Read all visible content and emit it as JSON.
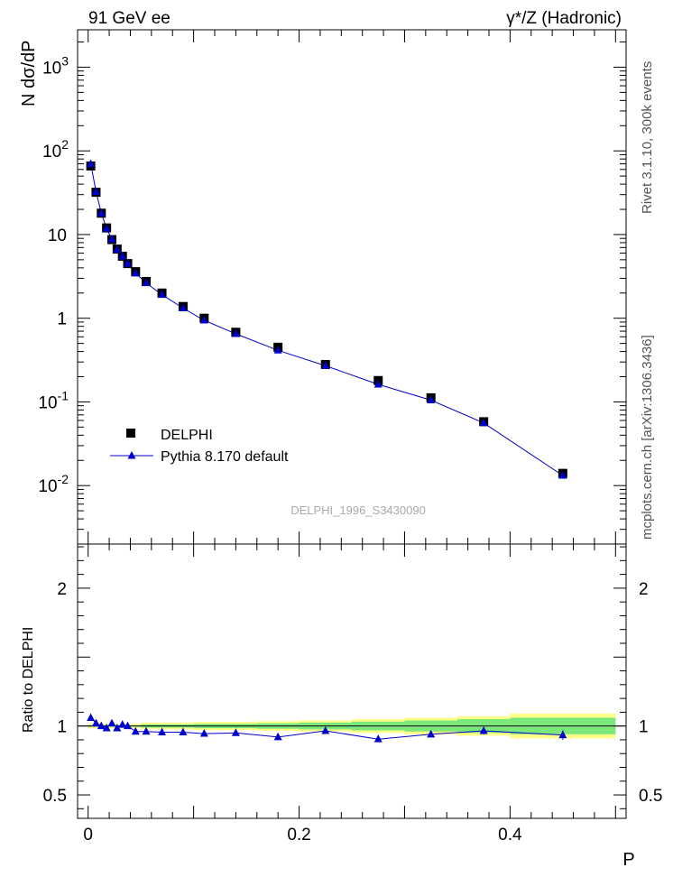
{
  "header": {
    "left": "91 GeV ee",
    "right": "γ*/Z (Hadronic)"
  },
  "side_labels": {
    "rivet": "Rivet 3.1.10,  300k events",
    "mcplots": "mcplots.cern.ch [arXiv:1306.3436]"
  },
  "watermark": "DELPHI_1996_S3430090",
  "chart_data": [
    {
      "type": "scatter",
      "ylabel": "N dσ/dP",
      "yscale": "log",
      "xlim": [
        -0.01,
        0.51
      ],
      "ylim": [
        0.002,
        2800
      ],
      "y_tick_labels": [
        "10^-2",
        "10^-1",
        "1",
        "10",
        "10^2",
        "10^3"
      ],
      "legend": {
        "placement": "lower-left",
        "entries": [
          "DELPHI",
          "Pythia 8.170 default"
        ]
      },
      "series": [
        {
          "name": "DELPHI",
          "marker": "square",
          "color": "#000000",
          "x": [
            0.0025,
            0.0075,
            0.0125,
            0.0175,
            0.0225,
            0.0275,
            0.0325,
            0.0375,
            0.045,
            0.055,
            0.07,
            0.09,
            0.11,
            0.14,
            0.18,
            0.225,
            0.275,
            0.325,
            0.375,
            0.45
          ],
          "y": [
            66,
            32,
            18,
            12,
            8.7,
            6.7,
            5.5,
            4.5,
            3.6,
            2.75,
            2.0,
            1.38,
            1.0,
            0.68,
            0.45,
            0.28,
            0.18,
            0.112,
            0.058,
            0.014
          ]
        },
        {
          "name": "Pythia 8.170 default",
          "marker": "triangle",
          "color": "#0000cc",
          "x": [
            0.0025,
            0.0075,
            0.0125,
            0.0175,
            0.0225,
            0.0275,
            0.0325,
            0.0375,
            0.045,
            0.055,
            0.07,
            0.09,
            0.11,
            0.14,
            0.18,
            0.225,
            0.275,
            0.325,
            0.375,
            0.45
          ],
          "y": [
            70,
            32.5,
            18,
            11.8,
            8.8,
            6.6,
            5.5,
            4.5,
            3.45,
            2.64,
            1.91,
            1.32,
            0.945,
            0.65,
            0.413,
            0.27,
            0.162,
            0.105,
            0.056,
            0.0132
          ]
        }
      ]
    },
    {
      "type": "line",
      "ylabel": "Ratio to DELPHI",
      "xlabel": "P",
      "xlim": [
        -0.01,
        0.51
      ],
      "ylim": [
        0.33,
        2.32
      ],
      "x_tick_labels": [
        "0",
        "0.2",
        "0.4"
      ],
      "y_tick_labels": [
        "0.5",
        "1",
        "2"
      ],
      "bands": [
        {
          "name": "total uncertainty",
          "color": "#ffff88",
          "x_edges": [
            0,
            0.05,
            0.1,
            0.16,
            0.2,
            0.25,
            0.3,
            0.35,
            0.4,
            0.5
          ],
          "half_width": [
            0.015,
            0.025,
            0.03,
            0.035,
            0.04,
            0.05,
            0.06,
            0.07,
            0.09
          ]
        },
        {
          "name": "statistical uncertainty",
          "color": "#7ce87c",
          "x_edges": [
            0,
            0.05,
            0.1,
            0.16,
            0.2,
            0.25,
            0.3,
            0.35,
            0.4,
            0.5
          ],
          "half_width": [
            0.006,
            0.012,
            0.016,
            0.02,
            0.025,
            0.032,
            0.04,
            0.05,
            0.06
          ]
        }
      ],
      "series": [
        {
          "name": "Pythia 8.170 default",
          "marker": "triangle",
          "color": "#0000cc",
          "x": [
            0.0025,
            0.0075,
            0.0125,
            0.0175,
            0.0225,
            0.0275,
            0.0325,
            0.0375,
            0.045,
            0.055,
            0.07,
            0.09,
            0.11,
            0.14,
            0.18,
            0.225,
            0.275,
            0.325,
            0.375,
            0.45
          ],
          "y": [
            1.06,
            1.02,
            1.0,
            0.985,
            1.02,
            0.985,
            1.01,
            1.0,
            0.96,
            0.96,
            0.955,
            0.955,
            0.945,
            0.95,
            0.92,
            0.965,
            0.905,
            0.94,
            0.965,
            0.935
          ],
          "err": [
            0.005,
            0.005,
            0.005,
            0.005,
            0.006,
            0.006,
            0.006,
            0.007,
            0.007,
            0.008,
            0.008,
            0.009,
            0.01,
            0.01,
            0.012,
            0.013,
            0.015,
            0.022,
            0.026,
            0.035
          ]
        }
      ]
    }
  ]
}
